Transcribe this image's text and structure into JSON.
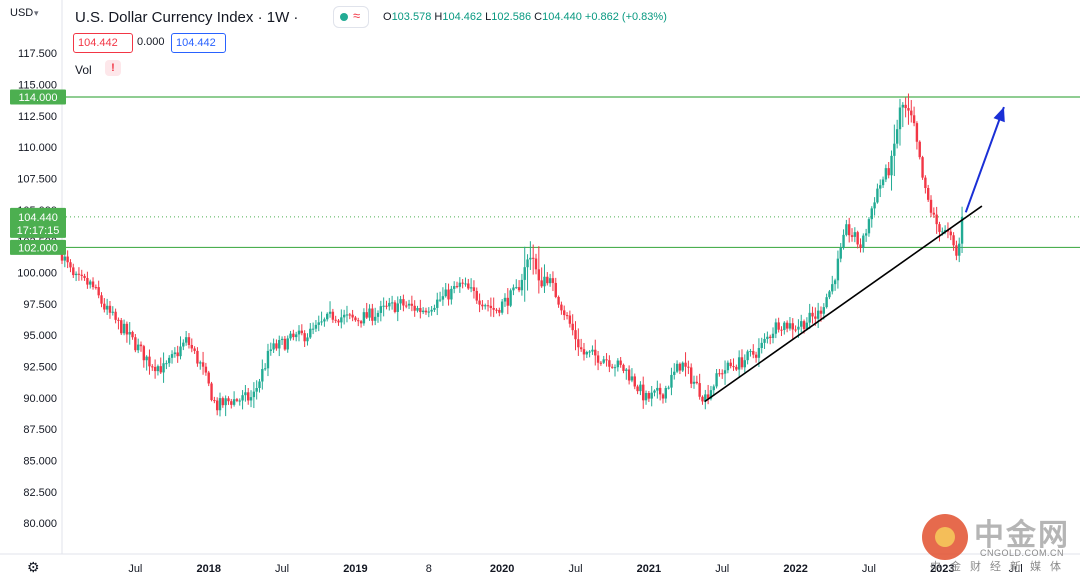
{
  "header": {
    "currency": "USD",
    "title": "U.S. Dollar Currency Index · 1W ·",
    "ohlc": {
      "open_label": "O",
      "open": "103.578",
      "high_label": "H",
      "high": "104.462",
      "low_label": "L",
      "low": "102.586",
      "close_label": "C",
      "close": "104.440",
      "change": "+0.862 (+0.83%)"
    },
    "sell_price": "104.442",
    "spread": "0.000",
    "buy_price": "104.442",
    "volume_label": "Vol",
    "warning_glyph": "!"
  },
  "watermark": {
    "name": "中金网",
    "url": "CNGOLD.COM.CN",
    "tagline": "中金财经新媒体"
  },
  "icons": {
    "settings": "gear-icon",
    "status_dot": "market-open-dot-icon",
    "wave": "wave-icon",
    "warning": "warning-icon"
  },
  "colors": {
    "up": "#22ab94",
    "down": "#f23645",
    "level_line": "#4caf50",
    "arrow": "#1a2fd6",
    "trendline": "#000000",
    "label_green": "#4caf50",
    "grid_text": "#131722"
  },
  "chart_data": {
    "type": "candlestick",
    "title": "U.S. Dollar Currency Index · 1W",
    "ylim": [
      78.5,
      118.5
    ],
    "y_ticks": [
      "117.500",
      "115.000",
      "112.500",
      "110.000",
      "107.500",
      "105.000",
      "102.500",
      "100.000",
      "97.500",
      "95.000",
      "92.500",
      "90.000",
      "87.500",
      "85.000",
      "82.500",
      "80.000"
    ],
    "y_tick_values": [
      117.5,
      115,
      112.5,
      110,
      107.5,
      105,
      102.5,
      100,
      97.5,
      95,
      92.5,
      90,
      87.5,
      85,
      82.5,
      80
    ],
    "x_range_years": [
      2017.0,
      2023.55
    ],
    "x_ticks": [
      {
        "label": "Jul",
        "t": 2017.5
      },
      {
        "label": "2018",
        "t": 2018.0
      },
      {
        "label": "Jul",
        "t": 2018.5
      },
      {
        "label": "2019",
        "t": 2019.0
      },
      {
        "label": "8",
        "t": 2019.5
      },
      {
        "label": "2020",
        "t": 2020.0
      },
      {
        "label": "Jul",
        "t": 2020.5
      },
      {
        "label": "2021",
        "t": 2021.0
      },
      {
        "label": "Jul",
        "t": 2021.5
      },
      {
        "label": "2022",
        "t": 2022.0
      },
      {
        "label": "Jul",
        "t": 2022.5
      },
      {
        "label": "2023",
        "t": 2023.0
      },
      {
        "label": "Jul",
        "t": 2023.5
      }
    ],
    "price_anchors": [
      [
        2017.0,
        101.5
      ],
      [
        2017.08,
        99.5
      ],
      [
        2017.2,
        99.0
      ],
      [
        2017.3,
        97.0
      ],
      [
        2017.45,
        95.0
      ],
      [
        2017.6,
        92.8
      ],
      [
        2017.7,
        92.3
      ],
      [
        2017.85,
        94.6
      ],
      [
        2017.95,
        92.5
      ],
      [
        2018.05,
        89.3
      ],
      [
        2018.15,
        89.8
      ],
      [
        2018.3,
        90.0
      ],
      [
        2018.42,
        93.8
      ],
      [
        2018.55,
        94.6
      ],
      [
        2018.7,
        95.2
      ],
      [
        2018.85,
        96.6
      ],
      [
        2019.0,
        96.2
      ],
      [
        2019.15,
        96.8
      ],
      [
        2019.3,
        97.5
      ],
      [
        2019.45,
        97.0
      ],
      [
        2019.6,
        98.0
      ],
      [
        2019.72,
        99.0
      ],
      [
        2019.85,
        97.9
      ],
      [
        2019.95,
        97.0
      ],
      [
        2020.1,
        98.5
      ],
      [
        2020.2,
        101.8
      ],
      [
        2020.25,
        99.0
      ],
      [
        2020.3,
        99.8
      ],
      [
        2020.4,
        97.5
      ],
      [
        2020.55,
        93.5
      ],
      [
        2020.7,
        93.2
      ],
      [
        2020.85,
        92.1
      ],
      [
        2020.98,
        89.9
      ],
      [
        2021.1,
        90.5
      ],
      [
        2021.22,
        92.8
      ],
      [
        2021.38,
        90.0
      ],
      [
        2021.5,
        92.2
      ],
      [
        2021.62,
        92.8
      ],
      [
        2021.75,
        93.8
      ],
      [
        2021.88,
        96.0
      ],
      [
        2022.0,
        95.7
      ],
      [
        2022.15,
        96.6
      ],
      [
        2022.25,
        99.0
      ],
      [
        2022.35,
        103.5
      ],
      [
        2022.45,
        102.0
      ],
      [
        2022.55,
        106.5
      ],
      [
        2022.65,
        108.5
      ],
      [
        2022.72,
        113.5
      ],
      [
        2022.8,
        112.0
      ],
      [
        2022.88,
        106.5
      ],
      [
        2022.95,
        104.0
      ],
      [
        2023.05,
        102.8
      ],
      [
        2023.1,
        101.2
      ],
      [
        2023.15,
        104.44
      ]
    ],
    "last_price": 104.44,
    "last_price_label": "104.440",
    "countdown": "17:17:15",
    "horizontal_levels": [
      {
        "value": 114.0,
        "label": "114.000",
        "style": "solid"
      },
      {
        "value": 102.0,
        "label": "102.000",
        "style": "solid"
      },
      {
        "value": 104.44,
        "style": "dotted"
      }
    ],
    "trendline": {
      "from": [
        2021.38,
        89.7
      ],
      "to": [
        2023.27,
        105.3
      ]
    },
    "projection_arrow": {
      "from": [
        2023.16,
        104.8
      ],
      "to": [
        2023.42,
        113.2
      ]
    }
  }
}
